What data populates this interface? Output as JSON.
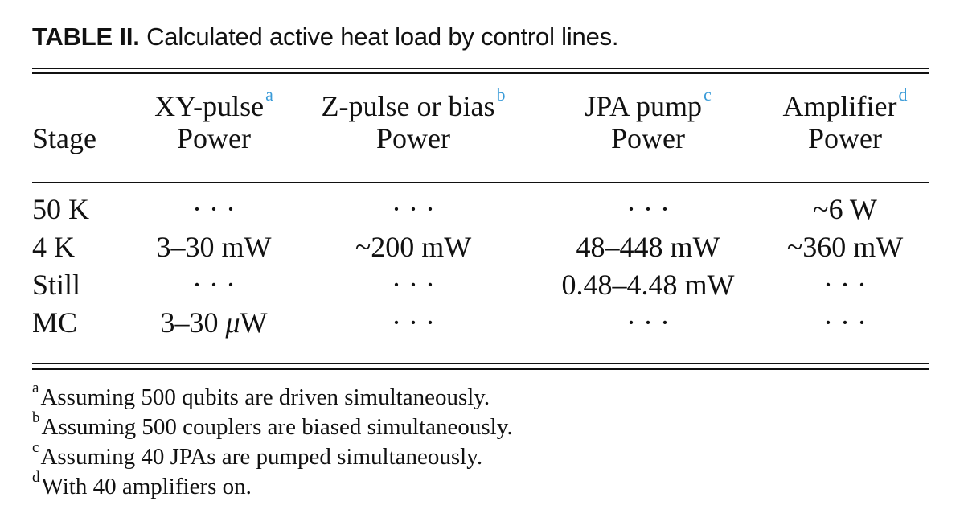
{
  "caption": {
    "label": "TABLE II.",
    "text": "Calculated active heat load by control lines."
  },
  "table": {
    "headers": [
      {
        "line1": "",
        "note": "",
        "line2": "Stage"
      },
      {
        "line1": "XY-pulse",
        "note": "a",
        "line2": "Power"
      },
      {
        "line1": "Z-pulse or bias",
        "note": "b",
        "line2": "Power"
      },
      {
        "line1": "JPA pump",
        "note": "c",
        "line2": "Power"
      },
      {
        "line1": "Amplifier",
        "note": "d",
        "line2": "Power"
      }
    ],
    "rows": [
      [
        "50 K",
        "· · ·",
        "· · ·",
        "· · ·",
        "~6 W"
      ],
      [
        "4 K",
        "3–30 mW",
        "~200 mW",
        "48–448 mW",
        "~360 mW"
      ],
      [
        "Still",
        "· · ·",
        "· · ·",
        "0.48–4.48 mW",
        "· · ·"
      ],
      [
        "MC",
        "3–30 ",
        "· · ·",
        "· · ·",
        "· · ·"
      ]
    ],
    "mc_xy_unit_mu": "μ",
    "mc_xy_unit_rest": "W"
  },
  "footnotes": [
    {
      "mark": "a",
      "text": "Assuming 500 qubits are driven simultaneously."
    },
    {
      "mark": "b",
      "text": "Assuming 500 couplers are biased simultaneously."
    },
    {
      "mark": "c",
      "text": "Assuming 40 JPAs are pumped simultaneously."
    },
    {
      "mark": "d",
      "text": "With 40 amplifiers on."
    }
  ],
  "colors": {
    "note_marker": "#3a9bd8",
    "text": "#111111",
    "rule": "#111111"
  }
}
